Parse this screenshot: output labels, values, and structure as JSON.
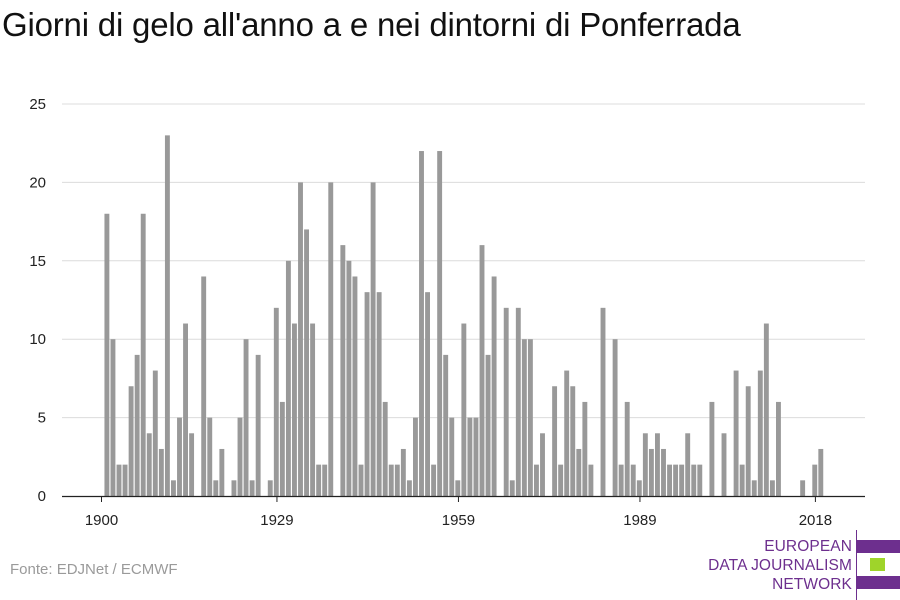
{
  "chart_data": {
    "type": "bar",
    "title": "Giorni di gelo all'anno a e nei dintorni di Ponferrada",
    "xlabel": "",
    "ylabel": "",
    "x_start": 1900,
    "x_end": 2020,
    "ylim": [
      0,
      25
    ],
    "yticks": [
      0,
      5,
      10,
      15,
      20,
      25
    ],
    "xticks": [
      1900,
      1929,
      1959,
      1989,
      2018
    ],
    "grid": true,
    "color": "#999999",
    "values": [
      0,
      18,
      10,
      2,
      2,
      7,
      9,
      18,
      4,
      8,
      3,
      23,
      1,
      5,
      11,
      4,
      0,
      14,
      5,
      1,
      3,
      0,
      1,
      5,
      10,
      1,
      9,
      0,
      1,
      12,
      6,
      15,
      11,
      20,
      17,
      11,
      2,
      2,
      20,
      0,
      16,
      15,
      14,
      2,
      13,
      20,
      13,
      6,
      2,
      2,
      3,
      1,
      5,
      22,
      13,
      2,
      22,
      9,
      5,
      1,
      11,
      5,
      5,
      16,
      9,
      14,
      0,
      12,
      1,
      12,
      10,
      10,
      2,
      4,
      0,
      7,
      2,
      8,
      7,
      3,
      6,
      2,
      0,
      12,
      0,
      10,
      2,
      6,
      2,
      1,
      4,
      3,
      4,
      3,
      2,
      2,
      2,
      4,
      2,
      2,
      0,
      6,
      0,
      4,
      0,
      8,
      2,
      7,
      1,
      8,
      11,
      1,
      6,
      0,
      0,
      0,
      1,
      0,
      2,
      3
    ]
  },
  "source": "Fonte: EDJNet / ECMWF",
  "logo": {
    "lines": [
      "EUROPEAN",
      "DATA JOURNALISM",
      "NETWORK"
    ],
    "colors": [
      "#6d2f8e",
      "#9fd42a",
      "#6d2f8e"
    ]
  }
}
